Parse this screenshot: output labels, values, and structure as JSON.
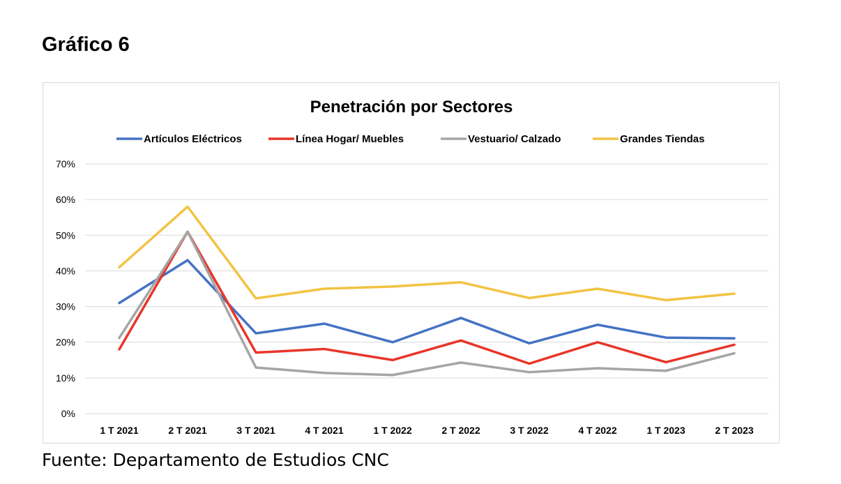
{
  "heading": "Gráfico 6",
  "source": "Fuente: Departamento de Estudios CNC",
  "chart_data": {
    "type": "line",
    "title": "Penetración por Sectores",
    "xlabel": "",
    "ylabel": "",
    "categories": [
      "1 T 2021",
      "2 T 2021",
      "3 T 2021",
      "4 T 2021",
      "1 T 2022",
      "2 T 2022",
      "3 T 2022",
      "4 T 2022",
      "1 T 2023",
      "2 T 2023"
    ],
    "ylim": [
      0,
      0.7
    ],
    "yticks": [
      "0%",
      "10%",
      "20%",
      "30%",
      "40%",
      "50%",
      "60%",
      "70%"
    ],
    "grid": true,
    "legend_position": "top",
    "series": [
      {
        "name": "Artículos Eléctricos",
        "color": "#4472c4",
        "values": [
          0.31,
          0.43,
          0.225,
          0.252,
          0.2,
          0.268,
          0.197,
          0.249,
          0.213,
          0.211
        ]
      },
      {
        "name": "Línea Hogar/ Muebles",
        "color": "#e8352a",
        "values": [
          0.18,
          0.51,
          0.171,
          0.181,
          0.15,
          0.205,
          0.14,
          0.2,
          0.144,
          0.193
        ]
      },
      {
        "name": "Vestuario/ Calzado",
        "color": "#a5a5a5",
        "values": [
          0.212,
          0.51,
          0.129,
          0.114,
          0.108,
          0.143,
          0.116,
          0.127,
          0.12,
          0.169
        ]
      },
      {
        "name": "Grandes Tiendas",
        "color": "#f2c342",
        "values": [
          0.41,
          0.58,
          0.323,
          0.35,
          0.356,
          0.368,
          0.324,
          0.35,
          0.318,
          0.336
        ]
      }
    ]
  }
}
